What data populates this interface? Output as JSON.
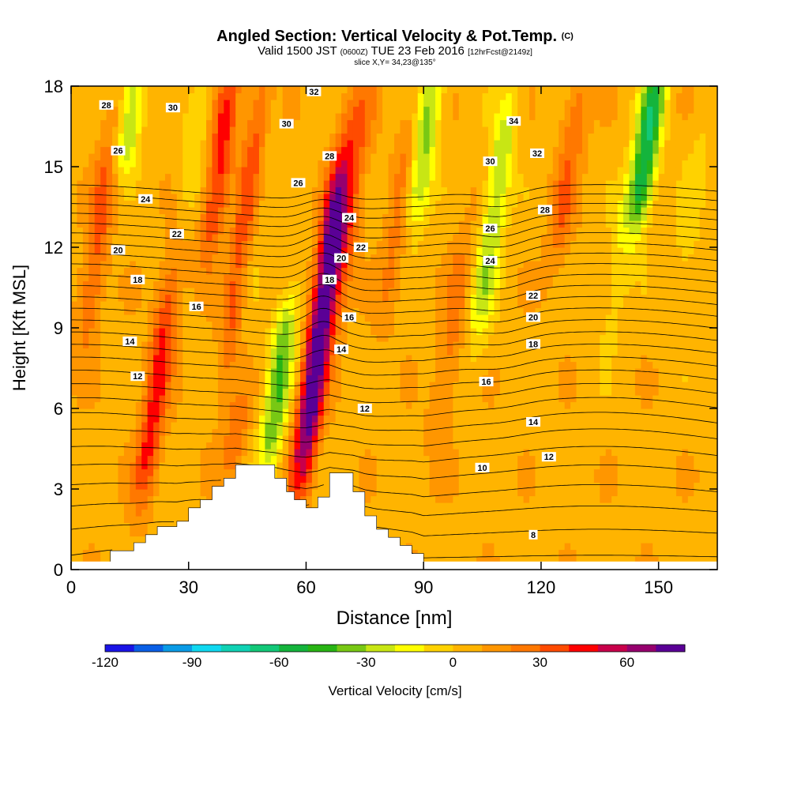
{
  "title": {
    "main": "Angled Section: Vertical Velocity & Pot.Temp.",
    "main_unit": "(C)",
    "valid_prefix": "Valid 1500 JST",
    "valid_utc": "(0600Z)",
    "valid_date": "TUE 23 Feb 2016",
    "fcst": "[12hrFcst@2149z]",
    "slice": "slice X,Y= 34,23@135°"
  },
  "chart_data": {
    "type": "heatmap",
    "xlabel": "Distance [nm]",
    "ylabel": "Height [Kft MSL]",
    "xlim": [
      0,
      165
    ],
    "ylim": [
      0,
      18
    ],
    "xticks": [
      0,
      30,
      60,
      90,
      120,
      150
    ],
    "yticks": [
      0,
      3,
      6,
      9,
      12,
      15,
      18
    ],
    "colorbar": {
      "label": "Vertical Velocity [cm/s]",
      "ticks": [
        -120,
        -90,
        -60,
        -30,
        0,
        30,
        60
      ],
      "range": [
        -120,
        80
      ],
      "colors": [
        "#1a14e6",
        "#0a5fe6",
        "#0a9be6",
        "#10d8f0",
        "#10d2b4",
        "#12c878",
        "#14b43c",
        "#28b414",
        "#78c814",
        "#c8e614",
        "#ffff00",
        "#ffd200",
        "#ffb400",
        "#ff9600",
        "#ff7800",
        "#ff4b00",
        "#ff0000",
        "#c8004b",
        "#96006e",
        "#5a0096"
      ]
    },
    "velocity_features": [
      {
        "x": 64,
        "top": 14.5,
        "bottom": 4.2,
        "peak": 78
      },
      {
        "x": 22,
        "top": 10.5,
        "bottom": 3.3,
        "peak": 38
      },
      {
        "x": 45,
        "top": 18,
        "bottom": 8.5,
        "peak": 40
      },
      {
        "x": 38,
        "top": 18,
        "bottom": 12.5,
        "peak": 38
      },
      {
        "x": 7,
        "top": 16,
        "bottom": 9,
        "peak": 26
      },
      {
        "x": 42,
        "top": 6,
        "bottom": 4,
        "peak": 20
      },
      {
        "x": 72,
        "top": 18,
        "bottom": 10,
        "peak": 20
      },
      {
        "x": 84,
        "top": 17,
        "bottom": 10,
        "peak": 18
      },
      {
        "x": 127,
        "top": 18,
        "bottom": 12,
        "peak": 22
      },
      {
        "x": 97,
        "top": 12,
        "bottom": 5,
        "peak": 18
      },
      {
        "x": 53,
        "top": 9.5,
        "bottom": 4.4,
        "peak": -45
      },
      {
        "x": 47,
        "top": 18,
        "bottom": 9.5,
        "peak": -18
      },
      {
        "x": 90,
        "top": 18,
        "bottom": 13.5,
        "peak": -42
      },
      {
        "x": 108,
        "top": 17,
        "bottom": 9.5,
        "peak": -35
      },
      {
        "x": 147,
        "top": 18,
        "bottom": 13.5,
        "peak": -65
      },
      {
        "x": 15,
        "top": 18,
        "bottom": 15.5,
        "peak": -38
      },
      {
        "x": 32,
        "top": 18,
        "bottom": 14,
        "peak": -15
      },
      {
        "x": 140,
        "top": 14,
        "bottom": 9,
        "peak": -12
      },
      {
        "x": 158,
        "top": 16,
        "bottom": 10,
        "peak": -10
      }
    ],
    "contour_labels": [
      {
        "text": "28",
        "x": 9,
        "y": 17.3
      },
      {
        "text": "30",
        "x": 26,
        "y": 17.2
      },
      {
        "text": "32",
        "x": 62,
        "y": 17.8
      },
      {
        "text": "30",
        "x": 55,
        "y": 16.6
      },
      {
        "text": "34",
        "x": 113,
        "y": 16.7
      },
      {
        "text": "26",
        "x": 12,
        "y": 15.6
      },
      {
        "text": "28",
        "x": 66,
        "y": 15.4
      },
      {
        "text": "32",
        "x": 119,
        "y": 15.5
      },
      {
        "text": "30",
        "x": 107,
        "y": 15.2
      },
      {
        "text": "26",
        "x": 58,
        "y": 14.4
      },
      {
        "text": "24",
        "x": 19,
        "y": 13.8
      },
      {
        "text": "28",
        "x": 121,
        "y": 13.4
      },
      {
        "text": "24",
        "x": 71,
        "y": 13.1
      },
      {
        "text": "22",
        "x": 27,
        "y": 12.5
      },
      {
        "text": "26",
        "x": 107,
        "y": 12.7
      },
      {
        "text": "22",
        "x": 74,
        "y": 12.0
      },
      {
        "text": "20",
        "x": 12,
        "y": 11.9
      },
      {
        "text": "20",
        "x": 69,
        "y": 11.6
      },
      {
        "text": "24",
        "x": 107,
        "y": 11.5
      },
      {
        "text": "18",
        "x": 17,
        "y": 10.8
      },
      {
        "text": "18",
        "x": 66,
        "y": 10.8
      },
      {
        "text": "22",
        "x": 118,
        "y": 10.2
      },
      {
        "text": "16",
        "x": 32,
        "y": 9.8
      },
      {
        "text": "16",
        "x": 71,
        "y": 9.4
      },
      {
        "text": "20",
        "x": 118,
        "y": 9.4
      },
      {
        "text": "14",
        "x": 15,
        "y": 8.5
      },
      {
        "text": "14",
        "x": 69,
        "y": 8.2
      },
      {
        "text": "18",
        "x": 118,
        "y": 8.4
      },
      {
        "text": "12",
        "x": 17,
        "y": 7.2
      },
      {
        "text": "16",
        "x": 106,
        "y": 7.0
      },
      {
        "text": "12",
        "x": 75,
        "y": 6.0
      },
      {
        "text": "14",
        "x": 118,
        "y": 5.5
      },
      {
        "text": "12",
        "x": 122,
        "y": 4.2
      },
      {
        "text": "10",
        "x": 105,
        "y": 3.8
      },
      {
        "text": "8",
        "x": 118,
        "y": 1.3
      }
    ],
    "theta_contours": {
      "levels": [
        8,
        9,
        10,
        11,
        12,
        13,
        14,
        15,
        16,
        17,
        18,
        19,
        20,
        21,
        22,
        23,
        24,
        25,
        26,
        27,
        28,
        29,
        30,
        31,
        32,
        33,
        34,
        35
      ]
    },
    "terrain": [
      {
        "x": 0,
        "h": 0
      },
      {
        "x": 10,
        "h": 0.7
      },
      {
        "x": 16,
        "h": 1.0
      },
      {
        "x": 19,
        "h": 1.3
      },
      {
        "x": 22,
        "h": 1.6
      },
      {
        "x": 27,
        "h": 1.8
      },
      {
        "x": 30,
        "h": 2.3
      },
      {
        "x": 33,
        "h": 2.6
      },
      {
        "x": 36,
        "h": 3.1
      },
      {
        "x": 39,
        "h": 3.4
      },
      {
        "x": 42,
        "h": 3.9
      },
      {
        "x": 52,
        "h": 3.4
      },
      {
        "x": 55,
        "h": 2.9
      },
      {
        "x": 57,
        "h": 2.6
      },
      {
        "x": 60,
        "h": 2.3
      },
      {
        "x": 63,
        "h": 2.7
      },
      {
        "x": 66,
        "h": 3.6
      },
      {
        "x": 72,
        "h": 2.9
      },
      {
        "x": 75,
        "h": 2.0
      },
      {
        "x": 78,
        "h": 1.5
      },
      {
        "x": 81,
        "h": 1.2
      },
      {
        "x": 84,
        "h": 0.9
      },
      {
        "x": 87,
        "h": 0.6
      },
      {
        "x": 90,
        "h": 0.0
      },
      {
        "x": 165,
        "h": 0
      }
    ]
  }
}
